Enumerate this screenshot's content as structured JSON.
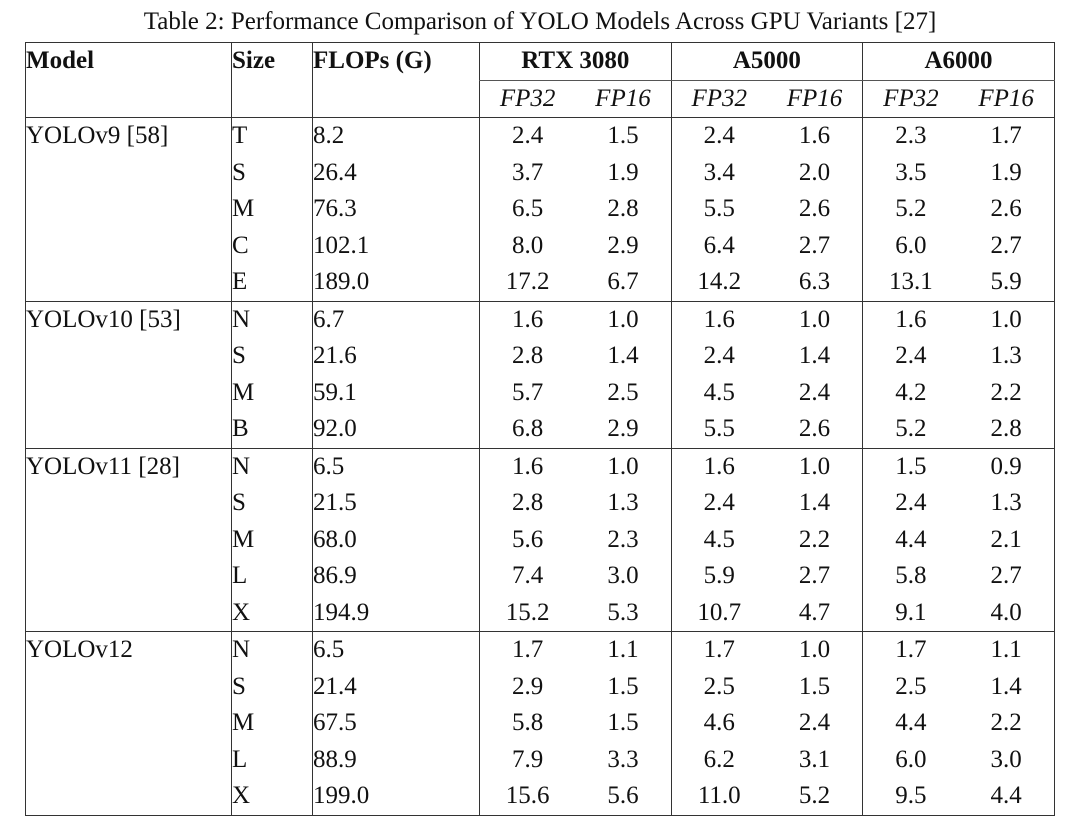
{
  "caption": "Table 2: Performance Comparison of YOLO Models Across GPU Variants [27]",
  "headers": {
    "model": "Model",
    "size": "Size",
    "flops": "FLOPs (G)",
    "gpus": [
      "RTX 3080",
      "A5000",
      "A6000"
    ],
    "precisions": [
      "FP32",
      "FP16",
      "FP32",
      "FP16",
      "FP32",
      "FP16"
    ]
  },
  "groups": [
    {
      "model": "YOLOv9 [58]",
      "rows": [
        {
          "size": "T",
          "flops": "8.2",
          "values": [
            "2.4",
            "1.5",
            "2.4",
            "1.6",
            "2.3",
            "1.7"
          ]
        },
        {
          "size": "S",
          "flops": "26.4",
          "values": [
            "3.7",
            "1.9",
            "3.4",
            "2.0",
            "3.5",
            "1.9"
          ]
        },
        {
          "size": "M",
          "flops": "76.3",
          "values": [
            "6.5",
            "2.8",
            "5.5",
            "2.6",
            "5.2",
            "2.6"
          ]
        },
        {
          "size": "C",
          "flops": "102.1",
          "values": [
            "8.0",
            "2.9",
            "6.4",
            "2.7",
            "6.0",
            "2.7"
          ]
        },
        {
          "size": "E",
          "flops": "189.0",
          "values": [
            "17.2",
            "6.7",
            "14.2",
            "6.3",
            "13.1",
            "5.9"
          ]
        }
      ]
    },
    {
      "model": "YOLOv10 [53]",
      "rows": [
        {
          "size": "N",
          "flops": "6.7",
          "values": [
            "1.6",
            "1.0",
            "1.6",
            "1.0",
            "1.6",
            "1.0"
          ]
        },
        {
          "size": "S",
          "flops": "21.6",
          "values": [
            "2.8",
            "1.4",
            "2.4",
            "1.4",
            "2.4",
            "1.3"
          ]
        },
        {
          "size": "M",
          "flops": "59.1",
          "values": [
            "5.7",
            "2.5",
            "4.5",
            "2.4",
            "4.2",
            "2.2"
          ]
        },
        {
          "size": "B",
          "flops": "92.0",
          "values": [
            "6.8",
            "2.9",
            "5.5",
            "2.6",
            "5.2",
            "2.8"
          ]
        }
      ]
    },
    {
      "model": "YOLOv11 [28]",
      "rows": [
        {
          "size": "N",
          "flops": "6.5",
          "values": [
            "1.6",
            "1.0",
            "1.6",
            "1.0",
            "1.5",
            "0.9"
          ]
        },
        {
          "size": "S",
          "flops": "21.5",
          "values": [
            "2.8",
            "1.3",
            "2.4",
            "1.4",
            "2.4",
            "1.3"
          ]
        },
        {
          "size": "M",
          "flops": "68.0",
          "values": [
            "5.6",
            "2.3",
            "4.5",
            "2.2",
            "4.4",
            "2.1"
          ]
        },
        {
          "size": "L",
          "flops": "86.9",
          "values": [
            "7.4",
            "3.0",
            "5.9",
            "2.7",
            "5.8",
            "2.7"
          ]
        },
        {
          "size": "X",
          "flops": "194.9",
          "values": [
            "15.2",
            "5.3",
            "10.7",
            "4.7",
            "9.1",
            "4.0"
          ]
        }
      ]
    },
    {
      "model": "YOLOv12",
      "rows": [
        {
          "size": "N",
          "flops": "6.5",
          "values": [
            "1.7",
            "1.1",
            "1.7",
            "1.0",
            "1.7",
            "1.1"
          ]
        },
        {
          "size": "S",
          "flops": "21.4",
          "values": [
            "2.9",
            "1.5",
            "2.5",
            "1.5",
            "2.5",
            "1.4"
          ]
        },
        {
          "size": "M",
          "flops": "67.5",
          "values": [
            "5.8",
            "1.5",
            "4.6",
            "2.4",
            "4.4",
            "2.2"
          ]
        },
        {
          "size": "L",
          "flops": "88.9",
          "values": [
            "7.9",
            "3.3",
            "6.2",
            "3.1",
            "6.0",
            "3.0"
          ]
        },
        {
          "size": "X",
          "flops": "199.0",
          "values": [
            "15.6",
            "5.6",
            "11.0",
            "5.2",
            "9.5",
            "4.4"
          ]
        }
      ]
    }
  ]
}
